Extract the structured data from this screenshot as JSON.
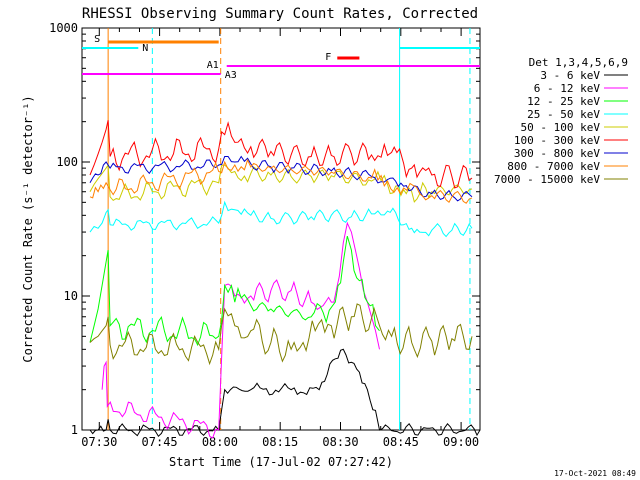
{
  "chart_data": {
    "type": "line",
    "title": "RHESSI Observing Summary Count Rates, Corrected",
    "xlabel": "Start Time (17-Jul-02 07:27:42)",
    "ylabel": "Corrected Count Rate (s⁻¹ detector⁻¹)",
    "yscale": "log",
    "ylim": [
      1,
      1000
    ],
    "xlim": [
      -2,
      97
    ],
    "x_unit": "minutes since 07:27:42",
    "x_ticks": [
      {
        "label": "07:30",
        "value": 2.3
      },
      {
        "label": "07:45",
        "value": 17.3
      },
      {
        "label": "08:00",
        "value": 32.3
      },
      {
        "label": "08:15",
        "value": 47.3
      },
      {
        "label": "08:30",
        "value": 62.3
      },
      {
        "label": "08:45",
        "value": 77.3
      },
      {
        "label": "09:00",
        "value": 92.3
      }
    ],
    "y_ticks": [
      {
        "label": "1",
        "value": 1
      },
      {
        "label": "10",
        "value": 10
      },
      {
        "label": "100",
        "value": 100
      },
      {
        "label": "1000",
        "value": 1000
      }
    ],
    "legend_title": "Det 1,3,4,5,6,9",
    "legend_position": "right",
    "series": [
      {
        "name": "3 - 6 keV",
        "color": "#000000",
        "points": [
          [
            0,
            1
          ],
          [
            2,
            1
          ],
          [
            4,
            1
          ],
          [
            4.5,
            1.2
          ],
          [
            5,
            1
          ],
          [
            32,
            1
          ],
          [
            33.5,
            2
          ],
          [
            40,
            2
          ],
          [
            50,
            2
          ],
          [
            57,
            2
          ],
          [
            59,
            2.6
          ],
          [
            61,
            3.4
          ],
          [
            63,
            4
          ],
          [
            65,
            3.2
          ],
          [
            67,
            2.7
          ],
          [
            69,
            2
          ],
          [
            71,
            1.4
          ],
          [
            72,
            1
          ],
          [
            97,
            1
          ]
        ]
      },
      {
        "name": "6 - 12 keV",
        "color": "#ff00ff",
        "points": [
          [
            3,
            2
          ],
          [
            3.5,
            3
          ],
          [
            4,
            3.2
          ],
          [
            4.3,
            1.5
          ],
          [
            32,
            1
          ],
          [
            33.5,
            12
          ],
          [
            36,
            10
          ],
          [
            40,
            10
          ],
          [
            45,
            11
          ],
          [
            50,
            11
          ],
          [
            55,
            9
          ],
          [
            58,
            8.5
          ],
          [
            60,
            9
          ],
          [
            62,
            14
          ],
          [
            63,
            25
          ],
          [
            64,
            35
          ],
          [
            65,
            30
          ],
          [
            66,
            22
          ],
          [
            67,
            16
          ],
          [
            68,
            11
          ],
          [
            69,
            9
          ],
          [
            70,
            7
          ],
          [
            71,
            5.5
          ],
          [
            72,
            4
          ]
        ]
      },
      {
        "name": "12 - 25 keV",
        "color": "#00ff00",
        "points": [
          [
            0,
            4.5
          ],
          [
            1,
            6
          ],
          [
            2,
            8
          ],
          [
            3,
            12
          ],
          [
            4,
            18
          ],
          [
            4.5,
            22
          ],
          [
            5,
            6
          ],
          [
            32,
            5
          ],
          [
            33.5,
            12
          ],
          [
            36,
            9
          ],
          [
            40,
            8.5
          ],
          [
            45,
            8
          ],
          [
            50,
            7.5
          ],
          [
            55,
            7
          ],
          [
            58,
            7.5
          ],
          [
            61,
            9
          ],
          [
            63,
            18
          ],
          [
            64,
            28
          ],
          [
            65,
            22
          ],
          [
            67,
            13
          ],
          [
            69,
            9
          ],
          [
            71,
            6
          ],
          [
            72,
            5.5
          ]
        ]
      },
      {
        "name": "25 - 50 keV",
        "color": "#00ffff",
        "points": [
          [
            0,
            30
          ],
          [
            1,
            33
          ],
          [
            2,
            32
          ],
          [
            3,
            35
          ],
          [
            4,
            42
          ],
          [
            4.5,
            44
          ],
          [
            5,
            34
          ],
          [
            32,
            35
          ],
          [
            33.5,
            50
          ],
          [
            36,
            44
          ],
          [
            40,
            40
          ],
          [
            45,
            38
          ],
          [
            50,
            38
          ],
          [
            55,
            39
          ],
          [
            60,
            40
          ],
          [
            65,
            39
          ],
          [
            70,
            41
          ],
          [
            74,
            43
          ],
          [
            76,
            42
          ],
          [
            78,
            34
          ],
          [
            80,
            32
          ],
          [
            82,
            30
          ],
          [
            85,
            31
          ],
          [
            90,
            31
          ],
          [
            95,
            32
          ]
        ]
      },
      {
        "name": "50 - 100 keV",
        "color": "#cccc00",
        "points": [
          [
            0,
            60
          ],
          [
            1,
            68
          ],
          [
            2,
            75
          ],
          [
            3,
            82
          ],
          [
            4,
            90
          ],
          [
            4.5,
            95
          ],
          [
            5,
            55
          ],
          [
            32,
            70
          ],
          [
            33.5,
            95
          ],
          [
            36,
            85
          ],
          [
            40,
            82
          ],
          [
            45,
            80
          ],
          [
            50,
            78
          ],
          [
            55,
            78
          ],
          [
            60,
            79
          ],
          [
            65,
            76
          ],
          [
            70,
            72
          ],
          [
            74,
            68
          ],
          [
            76,
            66
          ],
          [
            78,
            62
          ],
          [
            80,
            60
          ],
          [
            82,
            58
          ],
          [
            85,
            60
          ],
          [
            90,
            62
          ],
          [
            95,
            63
          ]
        ]
      },
      {
        "name": "100 - 300 keV",
        "color": "#ff0000",
        "points": [
          [
            0,
            80
          ],
          [
            1,
            95
          ],
          [
            2,
            115
          ],
          [
            3,
            140
          ],
          [
            4,
            175
          ],
          [
            4.5,
            205
          ],
          [
            5,
            110
          ],
          [
            32,
            125
          ],
          [
            33.5,
            160
          ],
          [
            36,
            140
          ],
          [
            40,
            130
          ],
          [
            45,
            120
          ],
          [
            50,
            113
          ],
          [
            55,
            110
          ],
          [
            60,
            112
          ],
          [
            65,
            115
          ],
          [
            70,
            113
          ],
          [
            74,
            112
          ],
          [
            75,
            118
          ],
          [
            77,
            125
          ],
          [
            78,
            98
          ],
          [
            80,
            90
          ],
          [
            82,
            84
          ],
          [
            85,
            80
          ],
          [
            90,
            78
          ],
          [
            95,
            76
          ]
        ]
      },
      {
        "name": "300 - 800 keV",
        "color": "#0000cc",
        "points": [
          [
            0,
            70
          ],
          [
            2,
            80
          ],
          [
            4,
            100
          ],
          [
            5,
            90
          ],
          [
            32,
            95
          ],
          [
            33.5,
            110
          ],
          [
            36,
            100
          ],
          [
            40,
            97
          ],
          [
            45,
            92
          ],
          [
            50,
            90
          ],
          [
            55,
            88
          ],
          [
            60,
            86
          ],
          [
            65,
            82
          ],
          [
            70,
            78
          ],
          [
            74,
            74
          ],
          [
            76,
            72
          ],
          [
            78,
            66
          ],
          [
            80,
            62
          ],
          [
            85,
            58
          ],
          [
            90,
            56
          ],
          [
            95,
            55
          ]
        ]
      },
      {
        "name": "800 - 7000 keV",
        "color": "#ff8000",
        "points": [
          [
            0,
            55
          ],
          [
            2,
            60
          ],
          [
            4,
            70
          ],
          [
            5,
            62
          ],
          [
            32,
            85
          ],
          [
            33.5,
            100
          ],
          [
            36,
            95
          ],
          [
            40,
            92
          ],
          [
            45,
            90
          ],
          [
            50,
            88
          ],
          [
            55,
            86
          ],
          [
            60,
            84
          ],
          [
            65,
            80
          ],
          [
            70,
            76
          ],
          [
            74,
            72
          ],
          [
            78,
            64
          ],
          [
            82,
            58
          ],
          [
            85,
            56
          ],
          [
            90,
            55
          ],
          [
            95,
            54
          ]
        ]
      },
      {
        "name": "7000 - 15000 keV",
        "color": "#808000",
        "points": [
          [
            0,
            4.5
          ],
          [
            1,
            4.8
          ],
          [
            2,
            5
          ],
          [
            3,
            5.5
          ],
          [
            4,
            6
          ],
          [
            4.5,
            7
          ],
          [
            5,
            4.3
          ],
          [
            32,
            4
          ],
          [
            33.5,
            8
          ],
          [
            36,
            6
          ],
          [
            40,
            5.5
          ],
          [
            45,
            4.5
          ],
          [
            50,
            4
          ],
          [
            53,
            4.5
          ],
          [
            56,
            5.5
          ],
          [
            60,
            6
          ],
          [
            65,
            7
          ],
          [
            70,
            6.8
          ],
          [
            72,
            6
          ],
          [
            75,
            5
          ],
          [
            80,
            4.5
          ],
          [
            85,
            4.6
          ],
          [
            90,
            4.8
          ],
          [
            95,
            5
          ]
        ]
      }
    ],
    "flag_bars": [
      {
        "label": "S",
        "color": "#ff8000",
        "level": "top",
        "x_start": 4.5,
        "x_end": 32
      }
    ],
    "flag_lines": [
      {
        "label": "N",
        "color": "#00ffff",
        "x_start": -2,
        "x_end": 12
      },
      {
        "label": "",
        "color": "#00ffff",
        "x_start": 77,
        "x_end": 97
      },
      {
        "label": "A1",
        "color": "#ff00ff",
        "x_start": 34,
        "x_end": 97
      },
      {
        "label": "A3",
        "color": "#ff00ff",
        "x_start": -2,
        "x_end": 32.5
      },
      {
        "label": "F",
        "color": "#ff0000",
        "x_start": 61.5,
        "x_end": 67
      }
    ],
    "vertical_lines": [
      {
        "x": 4.5,
        "color": "#ff8000",
        "dashed": false
      },
      {
        "x": 15.5,
        "color": "#00ffff",
        "dashed": true
      },
      {
        "x": 32.5,
        "color": "#ff8000",
        "dashed": true
      },
      {
        "x": 77,
        "color": "#00ffff",
        "dashed": false
      },
      {
        "x": 94.5,
        "color": "#00ffff",
        "dashed": true
      }
    ],
    "timestamp": "17-Oct-2021 08:49"
  }
}
